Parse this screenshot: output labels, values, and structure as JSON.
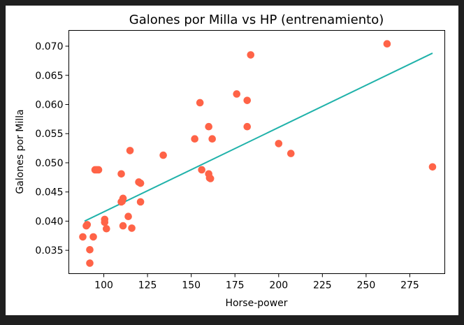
{
  "chart_data": {
    "type": "scatter",
    "title": "Galones por Milla vs HP (entrenamiento)",
    "xlabel": "Horse-power",
    "ylabel": "Galones por Milla",
    "xlim": [
      80,
      295
    ],
    "ylim": [
      0.031,
      0.0727
    ],
    "xticks": [
      100,
      125,
      150,
      175,
      200,
      225,
      250,
      275
    ],
    "yticks": [
      0.035,
      0.04,
      0.045,
      0.05,
      0.055,
      0.06,
      0.065,
      0.07
    ],
    "ytick_format": 3,
    "grid": false,
    "colors": {
      "points": "#ff6347",
      "fit": "#20b2aa"
    },
    "series": [
      {
        "type": "scatter",
        "points": [
          [
            88,
            0.0373
          ],
          [
            90,
            0.0392
          ],
          [
            90.5,
            0.0394
          ],
          [
            92,
            0.0351
          ],
          [
            92,
            0.0328
          ],
          [
            94,
            0.0373
          ],
          [
            95,
            0.0488
          ],
          [
            96,
            0.0488
          ],
          [
            97,
            0.0488
          ],
          [
            100.5,
            0.0403
          ],
          [
            100.5,
            0.0398
          ],
          [
            101.5,
            0.0387
          ],
          [
            110,
            0.0481
          ],
          [
            110,
            0.0433
          ],
          [
            110.5,
            0.0434
          ],
          [
            111,
            0.0439
          ],
          [
            111,
            0.0392
          ],
          [
            114,
            0.0408
          ],
          [
            115,
            0.0521
          ],
          [
            116,
            0.0388
          ],
          [
            120,
            0.0467
          ],
          [
            121,
            0.0465
          ],
          [
            121,
            0.0433
          ],
          [
            134,
            0.0513
          ],
          [
            152,
            0.0541
          ],
          [
            155,
            0.0603
          ],
          [
            156,
            0.0488
          ],
          [
            160,
            0.0481
          ],
          [
            160,
            0.0562
          ],
          [
            160.5,
            0.0474
          ],
          [
            161,
            0.0473
          ],
          [
            162,
            0.0541
          ],
          [
            176,
            0.0618
          ],
          [
            182,
            0.0607
          ],
          [
            182,
            0.0562
          ],
          [
            184,
            0.0685
          ],
          [
            200,
            0.0533
          ],
          [
            207,
            0.0516
          ],
          [
            262,
            0.0704
          ],
          [
            288,
            0.0493
          ]
        ]
      },
      {
        "type": "line",
        "points": [
          [
            89,
            0.04
          ],
          [
            288,
            0.0688
          ]
        ]
      }
    ]
  }
}
